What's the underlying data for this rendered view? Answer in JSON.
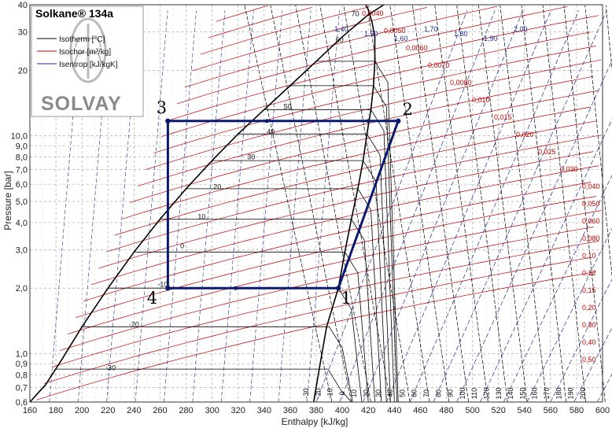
{
  "chart_data": {
    "type": "line",
    "title": "Solkane® 134a",
    "brand": "SOLVAY",
    "xlabel": "Enthalpy [kJ/kg]",
    "ylabel": "Pressure [bar]",
    "xlim": [
      160,
      600
    ],
    "ylim": [
      0.6,
      40
    ],
    "y_scale": "log",
    "grid": true,
    "x_ticks": [
      "160",
      "180",
      "200",
      "220",
      "240",
      "260",
      "280",
      "300",
      "320",
      "340",
      "360",
      "380",
      "400",
      "420",
      "440",
      "460",
      "480",
      "500",
      "520",
      "540",
      "560",
      "580",
      "600"
    ],
    "y_ticks": [
      {
        "value": 0.6,
        "label": "0,6"
      },
      {
        "value": 0.7,
        "label": "0,7"
      },
      {
        "value": 0.8,
        "label": "0,8"
      },
      {
        "value": 0.9,
        "label": "0,9"
      },
      {
        "value": 1.0,
        "label": "1,0"
      },
      {
        "value": 2.0,
        "label": "2,0"
      },
      {
        "value": 3.0,
        "label": "3,0"
      },
      {
        "value": 4.0,
        "label": "4,0"
      },
      {
        "value": 5.0,
        "label": "5,0"
      },
      {
        "value": 6.0,
        "label": "6,0"
      },
      {
        "value": 7.0,
        "label": "7,0"
      },
      {
        "value": 8.0,
        "label": "8,0"
      },
      {
        "value": 9.0,
        "label": "9,0"
      },
      {
        "value": 10,
        "label": "10,0"
      },
      {
        "value": 20,
        "label": "20"
      },
      {
        "value": 30,
        "label": "30"
      },
      {
        "value": 40,
        "label": "40"
      }
    ],
    "legend": {
      "placement": "top-left",
      "entries": [
        {
          "label": "Isotherm [°C]",
          "color": "#000000"
        },
        {
          "label": "Isochor [m³/kg]",
          "color": "#c00000"
        },
        {
          "label": "Isentrop [kJ/kgK]",
          "color": "#1a2a9a"
        }
      ]
    },
    "cycle": {
      "name": "",
      "color": "#0b1a6e",
      "points": [
        {
          "label": "1",
          "h": 397,
          "p": 2.0
        },
        {
          "label": "2",
          "h": 443,
          "p": 11.7
        },
        {
          "label": "3",
          "h": 266,
          "p": 11.7
        },
        {
          "label": "4",
          "h": 266,
          "p": 2.0
        }
      ]
    },
    "isotherm_labels": [
      {
        "text": "70",
        "h": 410,
        "p": 35.5
      },
      {
        "text": "60",
        "h": 398,
        "p": 27
      },
      {
        "text": "50",
        "h": 358,
        "p": 13.3
      },
      {
        "text": "40",
        "h": 345,
        "p": 10.2
      },
      {
        "text": "30",
        "h": 330,
        "p": 7.8
      },
      {
        "text": "20",
        "h": 304,
        "p": 5.7
      },
      {
        "text": "10",
        "h": 292,
        "p": 4.15
      },
      {
        "text": "0",
        "h": 277,
        "p": 3.05
      },
      {
        "text": "-10",
        "h": 262,
        "p": 2.03
      },
      {
        "text": "-20",
        "h": 240,
        "p": 1.33
      },
      {
        "text": "-30",
        "h": 222,
        "p": 0.84
      }
    ],
    "isochor_labels": [
      "0,0040",
      "0,0050",
      "0,0060",
      "0,0070",
      "0,0080",
      "0,010",
      "0,015",
      "0,020",
      "0,025",
      "0,030",
      "0,040",
      "0,050",
      "0,060",
      "0,080",
      "0,10",
      "0,12",
      "0,15",
      "0,20",
      "0,30",
      "0,40",
      "0,50"
    ],
    "isentrop_labels": [
      "1,40",
      "1,50",
      "1,60",
      "1,70",
      "1,80",
      "1,90",
      "2,00"
    ],
    "bottom_isotherm_labels": [
      "-30",
      "-20",
      "-10",
      "0",
      "10",
      "20",
      "30",
      "40",
      "50",
      "60",
      "70",
      "80",
      "90",
      "100",
      "110",
      "120",
      "130",
      "140",
      "150",
      "160",
      "170",
      "180",
      "190",
      "200"
    ]
  }
}
